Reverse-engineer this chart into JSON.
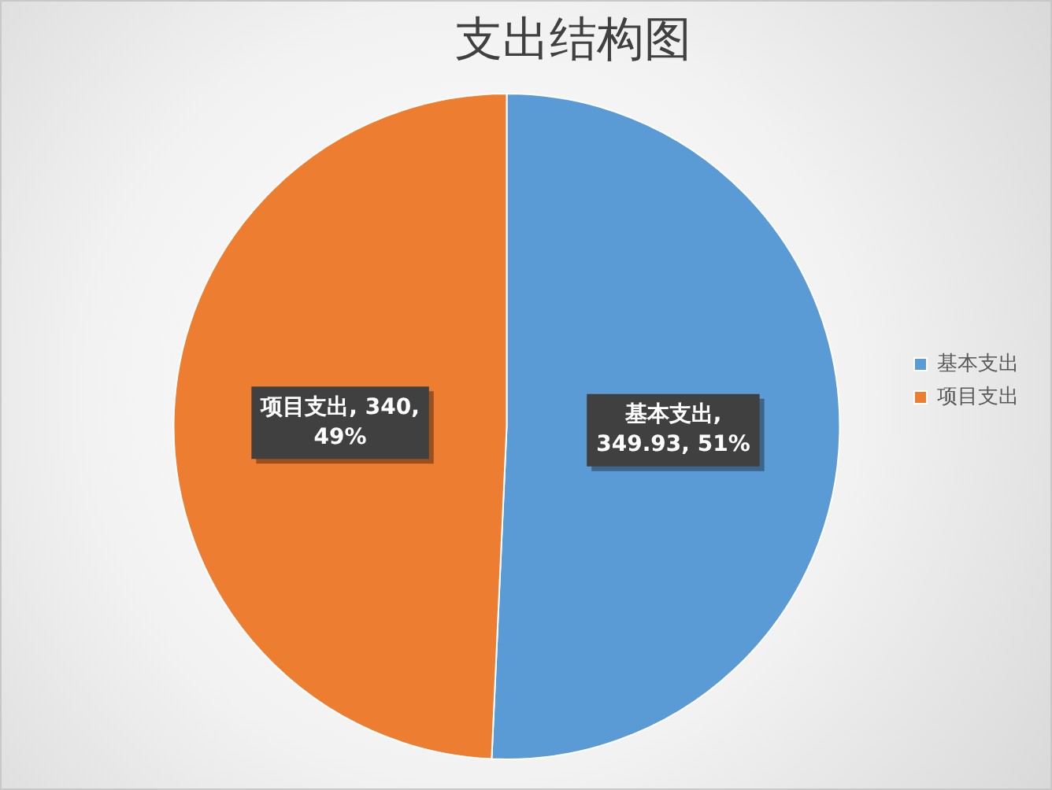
{
  "chart_data": {
    "type": "pie",
    "title": "支出结构图",
    "categories": [
      "基本支出",
      "项目支出"
    ],
    "values": [
      349.93,
      340
    ],
    "colors": [
      "#5b9bd5",
      "#ed7d31"
    ],
    "value_labels": [
      "基本支出, 349.93, 51%",
      "项目支出, 340, 49%"
    ],
    "legend": "right"
  }
}
